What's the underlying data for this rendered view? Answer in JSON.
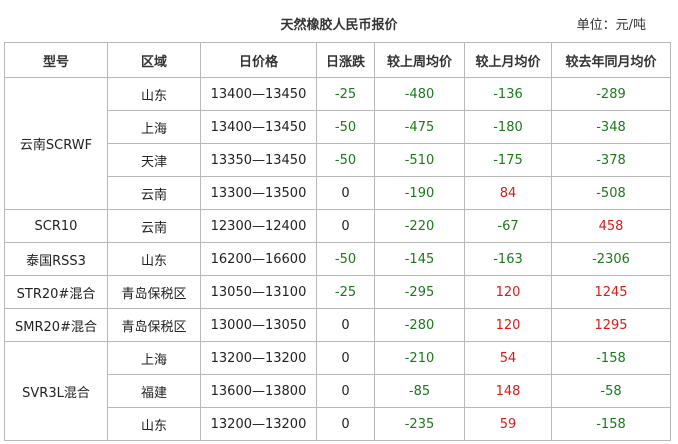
{
  "title": "天然橡胶人民币报价",
  "unit": "单位：元/吨",
  "headers": [
    "型号",
    "区域",
    "日价格",
    "日涨跌",
    "较上周均价",
    "较上月均价",
    "较去年同月均价"
  ],
  "groups": [
    {
      "model": "云南SCRWF",
      "rows": [
        {
          "region": "山东",
          "price": "13400—13450",
          "day": "-25",
          "week": "-480",
          "month": "-136",
          "year": "-289"
        },
        {
          "region": "上海",
          "price": "13400—13450",
          "day": "-50",
          "week": "-475",
          "month": "-180",
          "year": "-348"
        },
        {
          "region": "天津",
          "price": "13350—13450",
          "day": "-50",
          "week": "-510",
          "month": "-175",
          "year": "-378"
        },
        {
          "region": "云南",
          "price": "13300—13500",
          "day": "0",
          "week": "-190",
          "month": "84",
          "year": "-508"
        }
      ]
    },
    {
      "model": "SCR10",
      "rows": [
        {
          "region": "云南",
          "price": "12300—12400",
          "day": "0",
          "week": "-220",
          "month": "-67",
          "year": "458"
        }
      ]
    },
    {
      "model": "泰国RSS3",
      "rows": [
        {
          "region": "山东",
          "price": "16200—16600",
          "day": "-50",
          "week": "-145",
          "month": "-163",
          "year": "-2306"
        }
      ]
    },
    {
      "model": "STR20#混合",
      "rows": [
        {
          "region": "青岛保税区",
          "price": "13050—13100",
          "day": "-25",
          "week": "-295",
          "month": "120",
          "year": "1245"
        }
      ]
    },
    {
      "model": "SMR20#混合",
      "rows": [
        {
          "region": "青岛保税区",
          "price": "13000—13050",
          "day": "0",
          "week": "-280",
          "month": "120",
          "year": "1295"
        }
      ]
    },
    {
      "model": "SVR3L混合",
      "rows": [
        {
          "region": "上海",
          "price": "13200—13200",
          "day": "0",
          "week": "-210",
          "month": "54",
          "year": "-158"
        },
        {
          "region": "福建",
          "price": "13600—13800",
          "day": "0",
          "week": "-85",
          "month": "148",
          "year": "-58"
        },
        {
          "region": "山东",
          "price": "13200—13200",
          "day": "0",
          "week": "-235",
          "month": "59",
          "year": "-158"
        }
      ]
    }
  ]
}
